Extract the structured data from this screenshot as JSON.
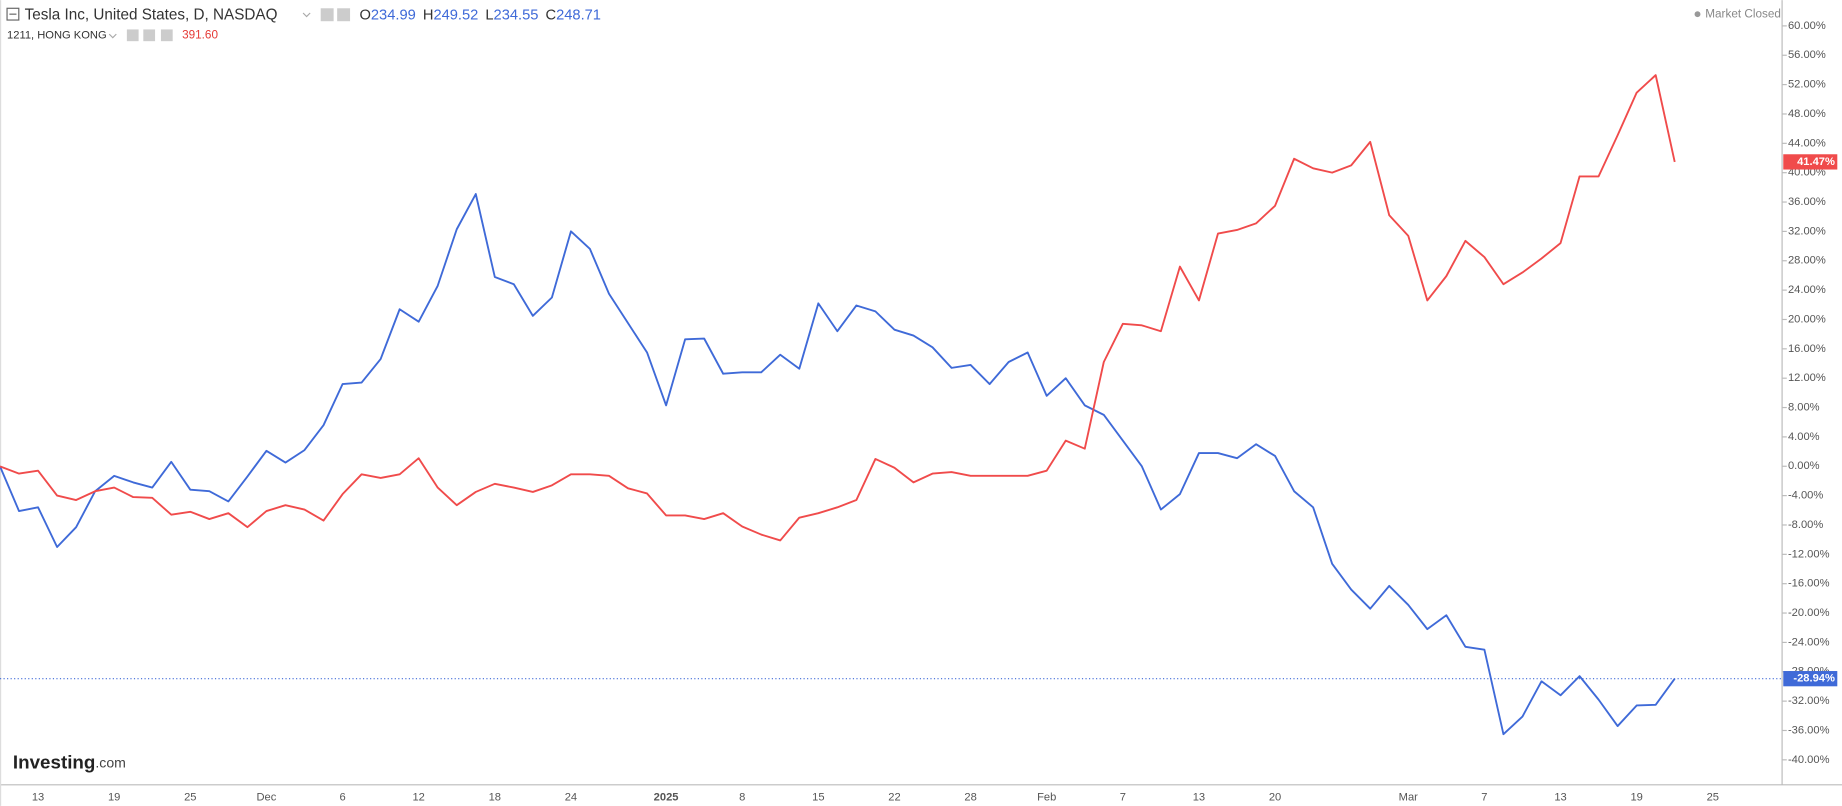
{
  "chart_data": {
    "type": "line",
    "status": "Market Closed",
    "logo": {
      "brand": "Investing",
      "suffix": ".com"
    },
    "categories": [
      null,
      null,
      "13",
      null,
      null,
      null,
      "19",
      null,
      null,
      null,
      "25",
      null,
      null,
      null,
      "Dec",
      null,
      null,
      null,
      "6",
      null,
      null,
      null,
      "12",
      null,
      null,
      null,
      "18",
      null,
      null,
      null,
      "24",
      null,
      null,
      null,
      null,
      "2025",
      null,
      null,
      null,
      "8",
      null,
      null,
      null,
      "15",
      null,
      null,
      null,
      "22",
      null,
      null,
      null,
      "28",
      null,
      null,
      null,
      "Feb",
      null,
      null,
      null,
      "7",
      null,
      null,
      null,
      "13",
      null,
      null,
      null,
      "20",
      null,
      null,
      null,
      null,
      null,
      null,
      "Mar",
      null,
      null,
      null,
      "7",
      null,
      null,
      null,
      "13",
      null,
      null,
      null,
      "19",
      null,
      null,
      null,
      "25"
    ],
    "ylim": [
      -43.4,
      63.52
    ],
    "yticks": [
      {
        "value": -40,
        "label": "-40.00%"
      },
      {
        "value": -36,
        "label": "-36.00%"
      },
      {
        "value": -32,
        "label": "-32.00%"
      },
      {
        "value": -28,
        "label": "-28.00%"
      },
      {
        "value": -24,
        "label": "-24.00%"
      },
      {
        "value": -20,
        "label": "-20.00%"
      },
      {
        "value": -16,
        "label": "-16.00%"
      },
      {
        "value": -12,
        "label": "-12.00%"
      },
      {
        "value": -8,
        "label": "-8.00%"
      },
      {
        "value": -4,
        "label": "-4.00%"
      },
      {
        "value": 0,
        "label": "0.00%"
      },
      {
        "value": 4,
        "label": "4.00%"
      },
      {
        "value": 8,
        "label": "8.00%"
      },
      {
        "value": 12,
        "label": "12.00%"
      },
      {
        "value": 16,
        "label": "16.00%"
      },
      {
        "value": 20,
        "label": "20.00%"
      },
      {
        "value": 24,
        "label": "24.00%"
      },
      {
        "value": 28,
        "label": "28.00%"
      },
      {
        "value": 32,
        "label": "32.00%"
      },
      {
        "value": 36,
        "label": "36.00%"
      },
      {
        "value": 40,
        "label": "40.00%"
      },
      {
        "value": 44,
        "label": "44.00%"
      },
      {
        "value": 48,
        "label": "48.00%"
      },
      {
        "value": 52,
        "label": "52.00%"
      },
      {
        "value": 56,
        "label": "56.00%"
      },
      {
        "value": 60,
        "label": "60.00%"
      }
    ],
    "grid": false,
    "series": [
      {
        "name": "Tesla Inc, United States, D, NASDAQ",
        "color": "#3f6ad8",
        "ohlc": [
          {
            "key": "O",
            "value": "234.99"
          },
          {
            "key": "H",
            "value": "249.52"
          },
          {
            "key": "L",
            "value": "234.55"
          },
          {
            "key": "C",
            "value": "248.71"
          }
        ],
        "values": [
          0,
          -6.1,
          -5.6,
          -11.0,
          -8.3,
          -3.4,
          -1.3,
          -2.2,
          -2.9,
          0.6,
          -3.2,
          -3.4,
          -4.8,
          -1.4,
          2.1,
          0.5,
          2.2,
          5.6,
          11.2,
          11.4,
          14.6,
          21.4,
          19.7,
          24.6,
          32.3,
          37.1,
          25.8,
          24.8,
          20.5,
          23.0,
          32.0,
          29.6,
          23.5,
          19.5,
          15.5,
          8.3,
          17.3,
          17.4,
          12.6,
          12.8,
          12.8,
          15.2,
          13.3,
          22.2,
          18.4,
          21.9,
          21.1,
          18.6,
          17.8,
          16.2,
          13.4,
          13.8,
          11.2,
          14.2,
          15.5,
          9.6,
          12.0,
          8.3,
          7.0,
          3.5,
          0.0,
          -5.9,
          -3.8,
          1.8,
          1.8,
          1.1,
          3.0,
          1.4,
          -3.4,
          -5.6,
          -13.3,
          -16.8,
          -19.4,
          -16.3,
          -18.9,
          -22.2,
          -20.3,
          -24.6,
          -25.0,
          -36.5,
          -34.1,
          -29.3,
          -31.2,
          -28.6,
          -31.8,
          -35.4,
          -32.6,
          -32.5,
          -28.94,
          null,
          null
        ],
        "value_labels": [
          null,
          null,
          null,
          null,
          null,
          null,
          null,
          null,
          null,
          null,
          null,
          null,
          null,
          null,
          null,
          null,
          null,
          null,
          null,
          null,
          null,
          null,
          null,
          null,
          null,
          null,
          null,
          null,
          null,
          null,
          null,
          null,
          null,
          null,
          null,
          null,
          null,
          null,
          null,
          null,
          null,
          null,
          null,
          null,
          null,
          null,
          null,
          null,
          null,
          null,
          null,
          null,
          null,
          null,
          null,
          null,
          null,
          null,
          null,
          null,
          null,
          null,
          null,
          null,
          null,
          null,
          null,
          null,
          null,
          null,
          null,
          null,
          null,
          null,
          null,
          null,
          null,
          null,
          null,
          null,
          null,
          null,
          null,
          null,
          null,
          null,
          null,
          null,
          "-28.94%",
          null,
          null
        ]
      },
      {
        "name": "1211, HONG KONG",
        "color": "#f04b4b",
        "price": "391.60",
        "values": [
          0,
          -1.0,
          -0.6,
          -4.0,
          -4.6,
          -3.4,
          -2.9,
          -4.2,
          -4.3,
          -6.6,
          -6.2,
          -7.2,
          -6.4,
          -8.3,
          -6.1,
          -5.3,
          -5.9,
          -7.4,
          -3.8,
          -1.1,
          -1.6,
          -1.1,
          1.1,
          -2.9,
          -5.3,
          -3.5,
          -2.4,
          -2.9,
          -3.5,
          -2.6,
          -1.1,
          -1.1,
          -1.3,
          -3.0,
          -3.7,
          -6.7,
          -6.7,
          -7.2,
          -6.4,
          -8.2,
          -9.3,
          -10.1,
          -7.0,
          -6.4,
          -5.6,
          -4.6,
          1.0,
          -0.2,
          -2.2,
          -1.0,
          -0.8,
          -1.3,
          -1.3,
          -1.3,
          -1.3,
          -0.6,
          3.5,
          2.4,
          14.2,
          19.4,
          19.2,
          18.4,
          27.2,
          22.6,
          31.7,
          32.2,
          33.1,
          35.5,
          41.9,
          40.6,
          40.0,
          41.0,
          44.2,
          34.2,
          31.4,
          22.6,
          25.9,
          30.7,
          28.5,
          24.8,
          26.4,
          28.3,
          30.4,
          39.5,
          39.5,
          45.1,
          50.9,
          53.3,
          41.47,
          null,
          null
        ],
        "value_labels": [
          null,
          null,
          null,
          null,
          null,
          null,
          null,
          null,
          null,
          null,
          null,
          null,
          null,
          null,
          null,
          null,
          null,
          null,
          null,
          null,
          null,
          null,
          null,
          null,
          null,
          null,
          null,
          null,
          null,
          null,
          null,
          null,
          null,
          null,
          null,
          null,
          null,
          null,
          null,
          null,
          null,
          null,
          null,
          null,
          null,
          null,
          null,
          null,
          null,
          null,
          null,
          null,
          null,
          null,
          null,
          null,
          null,
          null,
          null,
          null,
          null,
          null,
          null,
          null,
          null,
          null,
          null,
          null,
          null,
          null,
          null,
          null,
          null,
          null,
          null,
          null,
          null,
          null,
          null,
          null,
          null,
          null,
          null,
          null,
          null,
          null,
          null,
          null,
          "41.47%",
          null,
          null
        ]
      }
    ]
  }
}
